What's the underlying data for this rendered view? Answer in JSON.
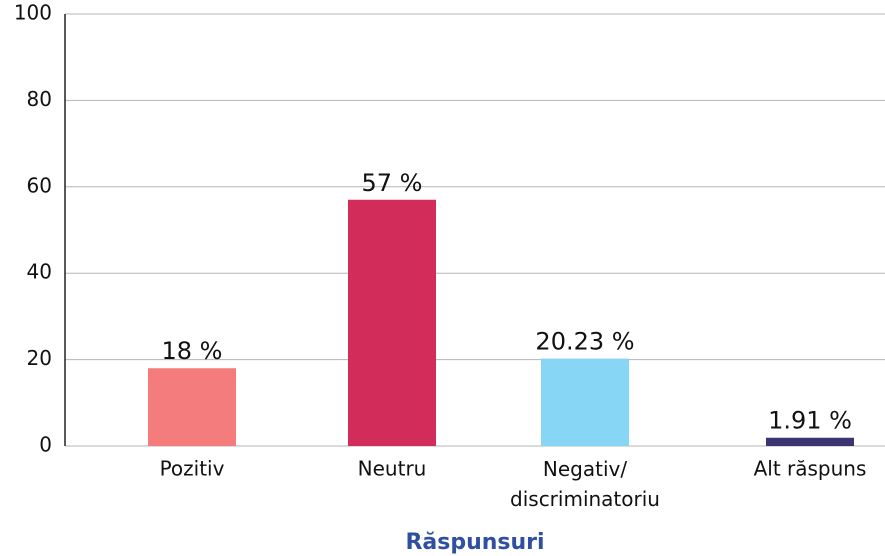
{
  "chart_data": {
    "type": "bar",
    "x_label": "Răspunsuri",
    "categories": [
      "Pozitiv",
      "Neutru",
      "Negativ/\ndiscriminatoriu",
      "Alt răspuns"
    ],
    "values": [
      18,
      57,
      20.23,
      1.91
    ],
    "value_labels": [
      "18 %",
      "57 %",
      "20.23 %",
      "1.91 %"
    ],
    "colors": [
      "#f47c7c",
      "#d12c5a",
      "#87d6f5",
      "#3b3670"
    ],
    "ylim": [
      0,
      100
    ],
    "yticks": [
      0,
      20,
      40,
      60,
      80,
      100
    ],
    "grid": true
  }
}
